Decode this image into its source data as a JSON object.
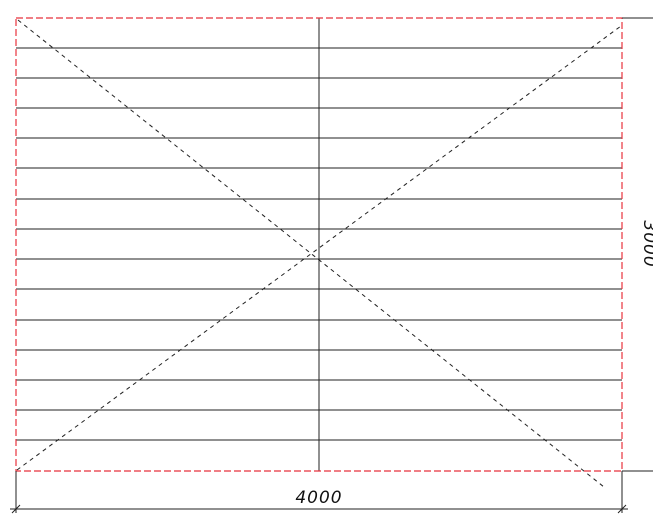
{
  "drawing": {
    "width_label": "4000",
    "height_label": "3000",
    "colors": {
      "line": "#222222",
      "border": "#e8323c",
      "diagonal": "#222222",
      "background": "#ffffff"
    }
  }
}
